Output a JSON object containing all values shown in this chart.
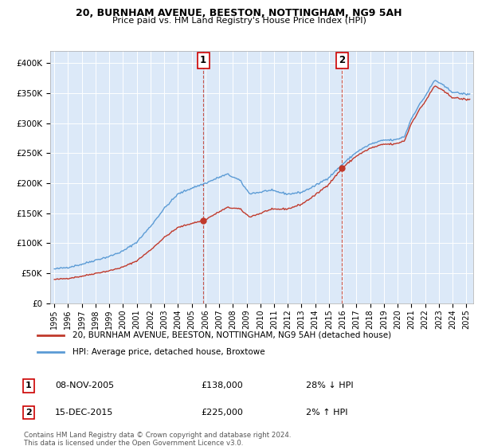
{
  "title1": "20, BURNHAM AVENUE, BEESTON, NOTTINGHAM, NG9 5AH",
  "title2": "Price paid vs. HM Land Registry's House Price Index (HPI)",
  "ylabel_ticks": [
    "£0",
    "£50K",
    "£100K",
    "£150K",
    "£200K",
    "£250K",
    "£300K",
    "£350K",
    "£400K"
  ],
  "ytick_values": [
    0,
    50000,
    100000,
    150000,
    200000,
    250000,
    300000,
    350000,
    400000
  ],
  "ylim": [
    0,
    420000
  ],
  "xlim_start": 1994.7,
  "xlim_end": 2025.5,
  "xtick_years": [
    1995,
    1996,
    1997,
    1998,
    1999,
    2000,
    2001,
    2002,
    2003,
    2004,
    2005,
    2006,
    2007,
    2008,
    2009,
    2010,
    2011,
    2012,
    2013,
    2014,
    2015,
    2016,
    2017,
    2018,
    2019,
    2020,
    2021,
    2022,
    2023,
    2024,
    2025
  ],
  "plot_bg_color": "#dce9f8",
  "sale1_price": 138000,
  "sale1_label": "28% ↓ HPI",
  "sale1_date": "08-NOV-2005",
  "sale1_year": 2005.85,
  "sale2_price": 225000,
  "sale2_label": "2% ↑ HPI",
  "sale2_date": "15-DEC-2015",
  "sale2_year": 2015.95,
  "hpi_line_color": "#5b9bd5",
  "sale_line_color": "#c0392b",
  "legend_sale_label": "20, BURNHAM AVENUE, BEESTON, NOTTINGHAM, NG9 5AH (detached house)",
  "legend_hpi_label": "HPI: Average price, detached house, Broxtowe",
  "footnote1": "Contains HM Land Registry data © Crown copyright and database right 2024.",
  "footnote2": "This data is licensed under the Open Government Licence v3.0."
}
